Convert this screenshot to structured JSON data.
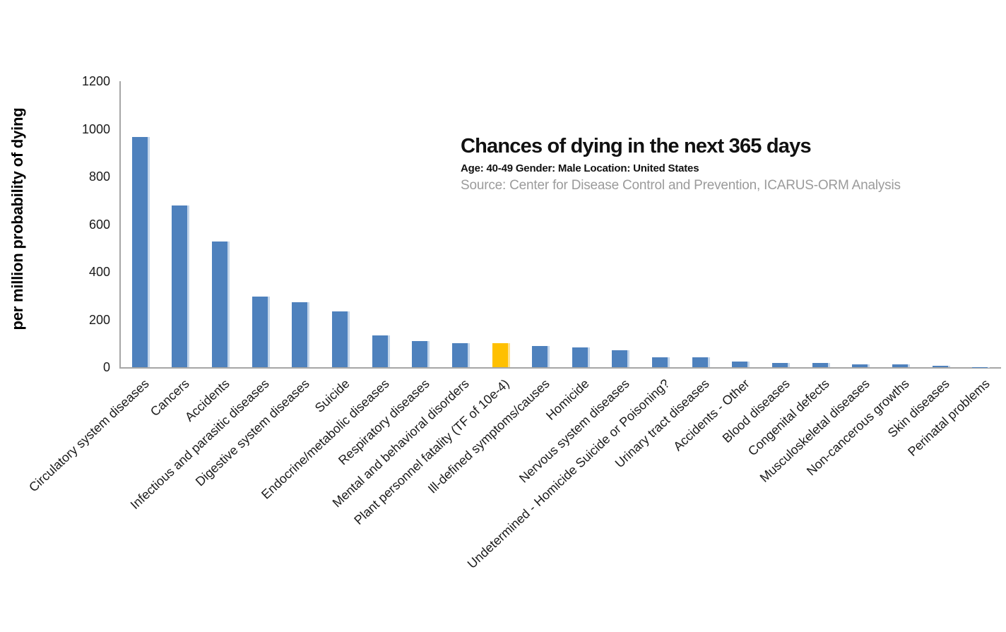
{
  "chart_data": {
    "type": "bar",
    "title": "Chances of dying in the next 365 days",
    "subtitle": "Age: 40-49 Gender: Male Location: United States",
    "source": "Source: Center for Disease Control and Prevention, ICARUS-ORM Analysis",
    "ylabel": "per million probability of dying",
    "xlabel": "",
    "ylim": [
      0,
      1200
    ],
    "yticks": [
      0,
      200,
      400,
      600,
      800,
      1000,
      1200
    ],
    "grid": false,
    "legend": "none",
    "categories": [
      "Circulatory system diseases",
      "Cancers",
      "Accidents",
      "Infectious and parasitic diseases",
      "Digestive system diseases",
      "Suicide",
      "Endocrine/metabolic diseases",
      "Respiratory diseases",
      "Mental and behavioral disorders",
      "Plant personnel fatality (TF of 10e-4)",
      "Ill-defined symptoms/causes",
      "Homicide",
      "Nervous system diseases",
      "Undetermined - Homicide Suicide or Poisoning?",
      "Urinary tract diseases",
      "Accidents - Other",
      "Blood diseases",
      "Congenital defects",
      "Musculoskeletal diseases",
      "Non-cancerous growths",
      "Skin diseases",
      "Perinatal problems"
    ],
    "values": [
      965,
      678,
      528,
      297,
      272,
      233,
      133,
      110,
      101,
      100,
      89,
      82,
      71,
      43,
      42,
      25,
      18,
      17,
      12,
      11,
      5,
      1
    ],
    "highlight_index": 9,
    "colors": {
      "bar": "#4e81bd",
      "bar_edge_highlight": "#c3d5ea",
      "highlight_bar": "#ffc000",
      "highlight_bar_edge": "#ffe08c",
      "axis": "#a6a6a6",
      "tick_text": "#1a1a1a",
      "source_text": "#9b9b9b"
    }
  }
}
